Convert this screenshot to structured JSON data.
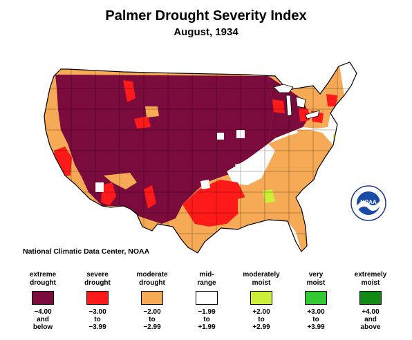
{
  "title": "Palmer Drought Severity Index",
  "subtitle": "August, 1934",
  "credit": "National Climatic Data Center, NOAA",
  "logo_text": "NOAA",
  "legend": [
    {
      "label1": "extreme",
      "label2": "drought",
      "color": "#7b0a3d",
      "r1": "−4.00",
      "r2": "and",
      "r3": "below"
    },
    {
      "label1": "severe",
      "label2": "drought",
      "color": "#ff1a1a",
      "r1": "−3.00",
      "r2": "to",
      "r3": "−3.99"
    },
    {
      "label1": "moderate",
      "label2": "drought",
      "color": "#f7aa55",
      "r1": "−2.00",
      "r2": "to",
      "r3": "−2.99"
    },
    {
      "label1": "mid-",
      "label2": "range",
      "color": "#ffffff",
      "r1": "−1.99",
      "r2": "to",
      "r3": "+1.99"
    },
    {
      "label1": "moderately",
      "label2": "moist",
      "color": "#ccf03a",
      "r1": "+2.00",
      "r2": "to",
      "r3": "+2.99"
    },
    {
      "label1": "very",
      "label2": "moist",
      "color": "#33c933",
      "r1": "+3.00",
      "r2": "to",
      "r3": "+3.99"
    },
    {
      "label1": "extremely",
      "label2": "moist",
      "color": "#138a13",
      "r1": "+4.00",
      "r2": "and",
      "r3": "above"
    }
  ]
}
